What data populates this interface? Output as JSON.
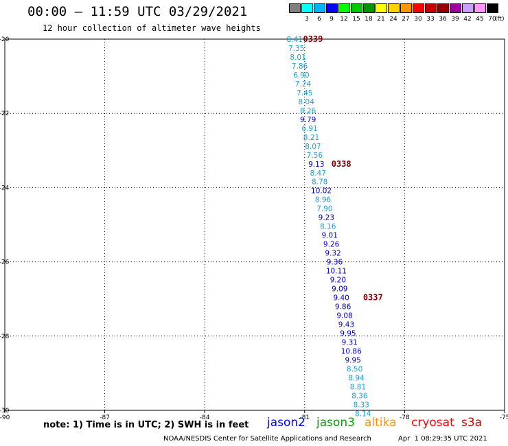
{
  "header": {
    "title": "00:00 – 11:59 UTC 03/29/2021",
    "subtitle": "12 hour collection of altimeter wave heights"
  },
  "legend": {
    "unit": "(ft)",
    "bins": [
      {
        "label": "3",
        "color": "#808080"
      },
      {
        "label": "6",
        "color": "#00ffff"
      },
      {
        "label": "9",
        "color": "#00b4ff"
      },
      {
        "label": "12",
        "color": "#0000ff"
      },
      {
        "label": "15",
        "color": "#00ff00"
      },
      {
        "label": "18",
        "color": "#00c800"
      },
      {
        "label": "21",
        "color": "#009600"
      },
      {
        "label": "24",
        "color": "#ffff00"
      },
      {
        "label": "27",
        "color": "#ffd200"
      },
      {
        "label": "30",
        "color": "#ff9600"
      },
      {
        "label": "33",
        "color": "#ff0000"
      },
      {
        "label": "36",
        "color": "#c80000"
      },
      {
        "label": "39",
        "color": "#960000"
      },
      {
        "label": "42",
        "color": "#a000a0"
      },
      {
        "label": "45",
        "color": "#c8a0ff"
      },
      {
        "label": "70",
        "color": "#ff96ff"
      },
      {
        "label": "",
        "color": "#000000"
      }
    ]
  },
  "colors": {
    "light": "#1ea0d2",
    "dark": "#0000c8",
    "pass": "#800000"
  },
  "chart_data": {
    "type": "scatter",
    "title": "00:00 – 11:59 UTC 03/29/2021",
    "xlim": [
      -90,
      -75
    ],
    "ylim": [
      -30,
      -20
    ],
    "xticks": [
      -90,
      -87,
      -84,
      -81,
      -78,
      -75
    ],
    "yticks": [
      -20,
      -22,
      -24,
      -26,
      -28,
      -30
    ],
    "grid": true,
    "points": [
      {
        "lon": -81.3,
        "lat": -20.0,
        "value": "8.41",
        "band": "light"
      },
      {
        "lon": -81.25,
        "lat": -20.24,
        "value": "7.35",
        "band": "light"
      },
      {
        "lon": -81.2,
        "lat": -20.48,
        "value": "8.01",
        "band": "light"
      },
      {
        "lon": -81.15,
        "lat": -20.72,
        "value": "7.86",
        "band": "light"
      },
      {
        "lon": -81.1,
        "lat": -20.96,
        "value": "6.90",
        "band": "light"
      },
      {
        "lon": -81.05,
        "lat": -21.2,
        "value": "7.24",
        "band": "light"
      },
      {
        "lon": -81.0,
        "lat": -21.44,
        "value": "7.45",
        "band": "light"
      },
      {
        "lon": -80.95,
        "lat": -21.68,
        "value": "8.04",
        "band": "light"
      },
      {
        "lon": -80.9,
        "lat": -21.92,
        "value": "8.26",
        "band": "light"
      },
      {
        "lon": -80.9,
        "lat": -22.16,
        "value": "9.79",
        "band": "dark"
      },
      {
        "lon": -80.85,
        "lat": -22.4,
        "value": "6.91",
        "band": "light"
      },
      {
        "lon": -80.8,
        "lat": -22.64,
        "value": "8.21",
        "band": "light"
      },
      {
        "lon": -80.75,
        "lat": -22.88,
        "value": "8.07",
        "band": "light"
      },
      {
        "lon": -80.7,
        "lat": -23.12,
        "value": "7.56",
        "band": "light"
      },
      {
        "lon": -80.65,
        "lat": -23.36,
        "value": "9.13",
        "band": "dark"
      },
      {
        "lon": -80.6,
        "lat": -23.6,
        "value": "8.47",
        "band": "light"
      },
      {
        "lon": -80.55,
        "lat": -23.84,
        "value": "8.78",
        "band": "light"
      },
      {
        "lon": -80.5,
        "lat": -24.08,
        "value": "10.02",
        "band": "dark"
      },
      {
        "lon": -80.45,
        "lat": -24.32,
        "value": "8.96",
        "band": "light"
      },
      {
        "lon": -80.4,
        "lat": -24.56,
        "value": "7.90",
        "band": "light"
      },
      {
        "lon": -80.35,
        "lat": -24.8,
        "value": "9.23",
        "band": "dark"
      },
      {
        "lon": -80.3,
        "lat": -25.04,
        "value": "8.16",
        "band": "light"
      },
      {
        "lon": -80.25,
        "lat": -25.28,
        "value": "9.01",
        "band": "dark"
      },
      {
        "lon": -80.2,
        "lat": -25.52,
        "value": "9.26",
        "band": "dark"
      },
      {
        "lon": -80.15,
        "lat": -25.76,
        "value": "9.32",
        "band": "dark"
      },
      {
        "lon": -80.1,
        "lat": -26.0,
        "value": "9.36",
        "band": "dark"
      },
      {
        "lon": -80.05,
        "lat": -26.24,
        "value": "10.11",
        "band": "dark"
      },
      {
        "lon": -80.0,
        "lat": -26.48,
        "value": "9.20",
        "band": "dark"
      },
      {
        "lon": -79.95,
        "lat": -26.72,
        "value": "9.09",
        "band": "dark"
      },
      {
        "lon": -79.9,
        "lat": -26.96,
        "value": "9.40",
        "band": "dark"
      },
      {
        "lon": -79.85,
        "lat": -27.2,
        "value": "9.86",
        "band": "dark"
      },
      {
        "lon": -79.8,
        "lat": -27.44,
        "value": "9.08",
        "band": "dark"
      },
      {
        "lon": -79.75,
        "lat": -27.68,
        "value": "9.43",
        "band": "dark"
      },
      {
        "lon": -79.7,
        "lat": -27.92,
        "value": "9.95",
        "band": "dark"
      },
      {
        "lon": -79.65,
        "lat": -28.16,
        "value": "9.31",
        "band": "dark"
      },
      {
        "lon": -79.6,
        "lat": -28.4,
        "value": "10.86",
        "band": "dark"
      },
      {
        "lon": -79.55,
        "lat": -28.64,
        "value": "9.95",
        "band": "dark"
      },
      {
        "lon": -79.5,
        "lat": -28.88,
        "value": "8.50",
        "band": "light"
      },
      {
        "lon": -79.45,
        "lat": -29.12,
        "value": "8.94",
        "band": "light"
      },
      {
        "lon": -79.4,
        "lat": -29.36,
        "value": "8.81",
        "band": "light"
      },
      {
        "lon": -79.35,
        "lat": -29.6,
        "value": "8.36",
        "band": "light"
      },
      {
        "lon": -79.3,
        "lat": -29.84,
        "value": "8.33",
        "band": "light"
      },
      {
        "lon": -79.25,
        "lat": -30.08,
        "value": "8.14",
        "band": "light"
      }
    ],
    "pass_labels": [
      {
        "text": "0339",
        "lon": -80.75,
        "lat": -20.0
      },
      {
        "text": "0338",
        "lon": -79.9,
        "lat": -23.36
      },
      {
        "text": "0337",
        "lon": -78.95,
        "lat": -26.96
      }
    ]
  },
  "footer": {
    "note": "note: 1) Time is in UTC; 2) SWH is in feet",
    "satellites": [
      {
        "name": "jason2",
        "color": "#0000ff"
      },
      {
        "name": "jason3",
        "color": "#00a000"
      },
      {
        "name": "altika",
        "color": "#ff9600"
      },
      {
        "name": "cryosat",
        "color": "#ff0000"
      },
      {
        "name": "s3a",
        "color": "#c80000"
      }
    ],
    "credit": "NOAA/NESDIS Center for Satellite Applications and Research",
    "timestamp": "Apr  1 08:29:35 UTC 2021"
  }
}
